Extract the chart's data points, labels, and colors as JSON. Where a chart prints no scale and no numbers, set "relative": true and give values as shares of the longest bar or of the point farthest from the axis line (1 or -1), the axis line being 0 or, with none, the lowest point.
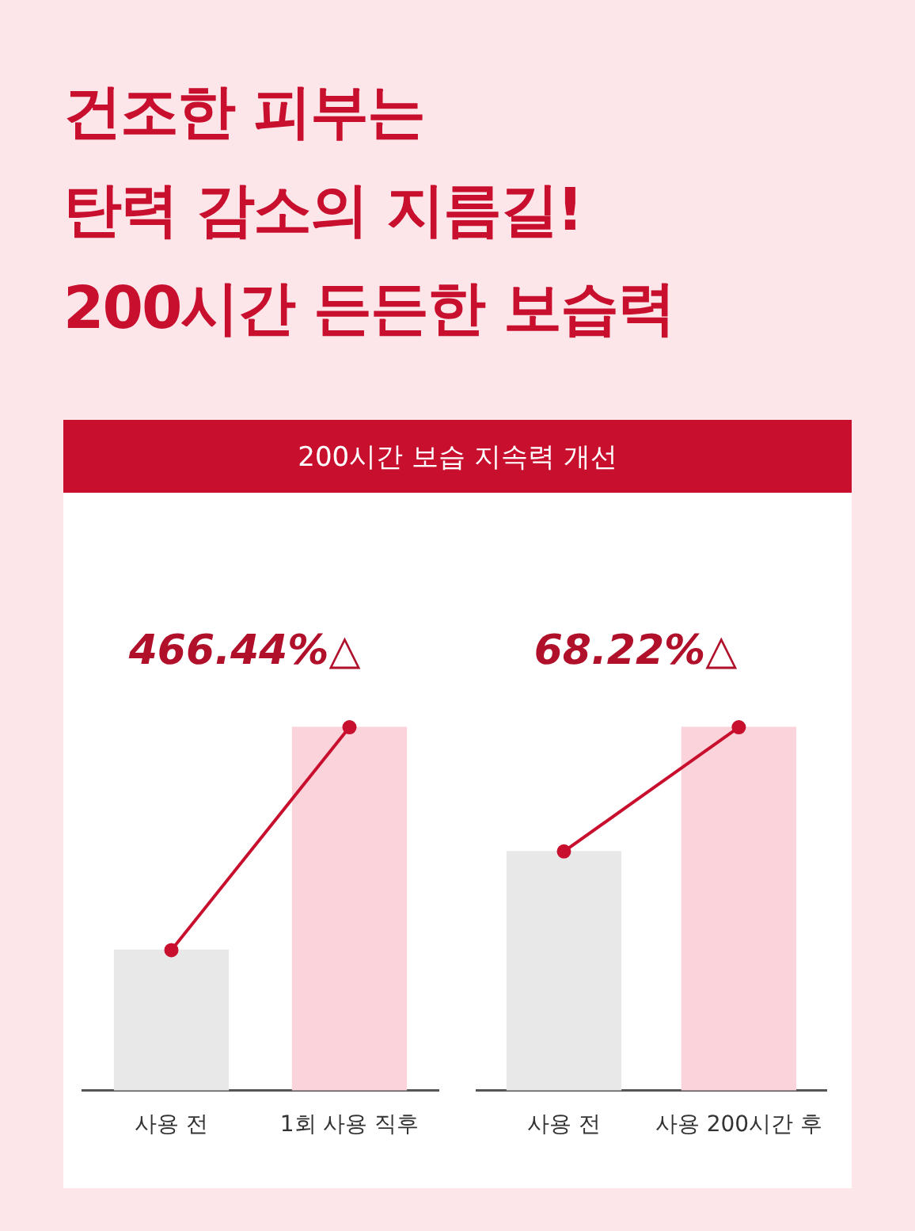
{
  "chart_data": [
    {
      "type": "bar",
      "title": "건조한 피부는\n탄력 감소의 지름길!\n200시간 든든한 보습력",
      "subtitle": "200시간 보습 지속력 개선",
      "categories": [
        "사용 전",
        "1회 사용 직후"
      ],
      "relative": true,
      "marker": "circle",
      "annotations": [
        "466.44%△"
      ],
      "series": [
        {
          "colors": [
            "#e8e8e8",
            "#fbd3da"
          ],
          "values": [
            0.386,
            1
          ]
        },
        {
          "type": "line",
          "color": "#c8102e",
          "values": [
            0.386,
            1
          ]
        }
      ]
    },
    {
      "type": "bar",
      "categories": [
        "사용 전",
        "사용 200시간 후"
      ],
      "relative": true,
      "marker": "circle",
      "annotations": [
        "68.22%△"
      ],
      "series": [
        {
          "colors": [
            "#e8e8e8",
            "#fbd3da"
          ],
          "values": [
            0.658,
            1
          ]
        },
        {
          "type": "line",
          "color": "#c8102e",
          "values": [
            0.658,
            1
          ]
        }
      ]
    }
  ]
}
